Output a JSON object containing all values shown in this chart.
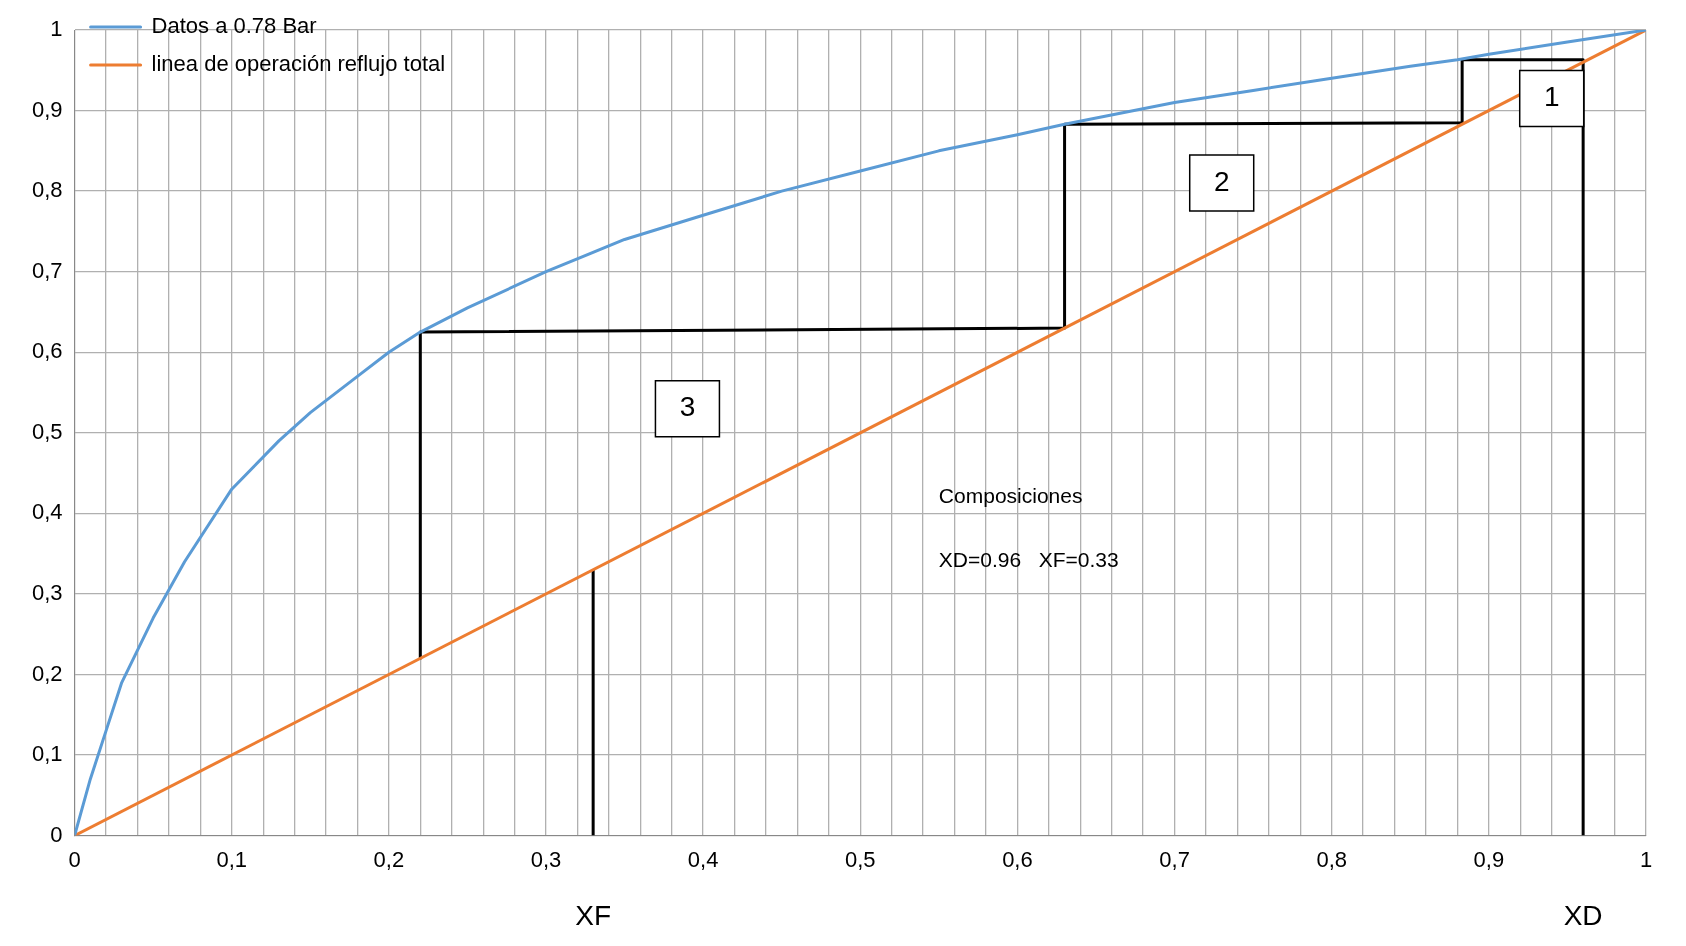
{
  "chart_data": {
    "type": "line",
    "xlim": [
      0,
      1
    ],
    "ylim": [
      0,
      1
    ],
    "xticks": [
      0,
      {
        "value": 0.02,
        "label": null
      },
      {
        "value": 0.04,
        "label": null
      },
      {
        "value": 0.06,
        "label": null
      },
      {
        "value": 0.08,
        "label": null
      },
      {
        "value": 0.1,
        "label": "0,1"
      },
      {
        "value": 0.12,
        "label": null
      },
      {
        "value": 0.14,
        "label": null
      },
      {
        "value": 0.16,
        "label": null
      },
      {
        "value": 0.18,
        "label": null
      },
      {
        "value": 0.2,
        "label": "0,2"
      },
      {
        "value": 0.22,
        "label": null
      },
      {
        "value": 0.24,
        "label": null
      },
      {
        "value": 0.26,
        "label": null
      },
      {
        "value": 0.28,
        "label": null
      },
      {
        "value": 0.3,
        "label": "0,3"
      },
      {
        "value": 0.32,
        "label": null
      },
      {
        "value": 0.34,
        "label": null
      },
      {
        "value": 0.36,
        "label": null
      },
      {
        "value": 0.38,
        "label": null
      },
      {
        "value": 0.4,
        "label": "0,4"
      },
      {
        "value": 0.42,
        "label": null
      },
      {
        "value": 0.44,
        "label": null
      },
      {
        "value": 0.46,
        "label": null
      },
      {
        "value": 0.48,
        "label": null
      },
      {
        "value": 0.5,
        "label": "0,5"
      },
      {
        "value": 0.52,
        "label": null
      },
      {
        "value": 0.54,
        "label": null
      },
      {
        "value": 0.56,
        "label": null
      },
      {
        "value": 0.58,
        "label": null
      },
      {
        "value": 0.6,
        "label": "0,6"
      },
      {
        "value": 0.62,
        "label": null
      },
      {
        "value": 0.64,
        "label": null
      },
      {
        "value": 0.66,
        "label": null
      },
      {
        "value": 0.68,
        "label": null
      },
      {
        "value": 0.7,
        "label": "0,7"
      },
      {
        "value": 0.72,
        "label": null
      },
      {
        "value": 0.74,
        "label": null
      },
      {
        "value": 0.76,
        "label": null
      },
      {
        "value": 0.78,
        "label": null
      },
      {
        "value": 0.8,
        "label": "0,8"
      },
      {
        "value": 0.82,
        "label": null
      },
      {
        "value": 0.84,
        "label": null
      },
      {
        "value": 0.86,
        "label": null
      },
      {
        "value": 0.88,
        "label": null
      },
      {
        "value": 0.9,
        "label": "0,9"
      },
      {
        "value": 0.92,
        "label": null
      },
      {
        "value": 0.94,
        "label": null
      },
      {
        "value": 0.96,
        "label": null
      },
      {
        "value": 0.98,
        "label": null
      },
      1
    ],
    "yticks": [
      0,
      {
        "value": 0.1,
        "label": "0,1"
      },
      {
        "value": 0.2,
        "label": "0,2"
      },
      {
        "value": 0.3,
        "label": "0,3"
      },
      {
        "value": 0.4,
        "label": "0,4"
      },
      {
        "value": 0.5,
        "label": "0,5"
      },
      {
        "value": 0.6,
        "label": "0,6"
      },
      {
        "value": 0.7,
        "label": "0,7"
      },
      {
        "value": 0.8,
        "label": "0,8"
      },
      {
        "value": 0.9,
        "label": "0,9"
      },
      1
    ],
    "grid": true,
    "legend": "top left",
    "marker": "none",
    "line_style": "solid",
    "series": [
      {
        "name": "Datos a 0.78 Bar",
        "color": "#5b9bd5",
        "x": [
          0,
          0.01,
          0.02,
          0.03,
          0.05,
          0.07,
          0.1,
          0.13,
          0.15,
          0.18,
          0.2,
          0.22,
          0.25,
          0.3,
          0.35,
          0.4,
          0.45,
          0.5,
          0.55,
          0.6,
          0.63,
          0.7,
          0.75,
          0.8,
          0.85,
          0.88,
          0.9,
          0.95,
          1
        ],
        "values": [
          0,
          0.07,
          0.13,
          0.19,
          0.27,
          0.34,
          0.43,
          0.49,
          0.525,
          0.57,
          0.6,
          0.625,
          0.655,
          0.7,
          0.74,
          0.77,
          0.8,
          0.825,
          0.85,
          0.87,
          0.883,
          0.91,
          0.925,
          0.94,
          0.955,
          0.963,
          0.97,
          0.985,
          1
        ]
      },
      {
        "name": "linea de operación reflujo total",
        "color": "#ed7d31",
        "x": [
          0,
          1
        ],
        "values": [
          0,
          1
        ]
      },
      {
        "color": "#000000",
        "x": [
          0.96,
          0.96,
          0.883,
          0.883,
          0.63,
          0.63,
          0.22,
          0.22
        ],
        "values": [
          0,
          0.963,
          0.963,
          0.885,
          0.883,
          0.63,
          0.625,
          0.22
        ]
      },
      {
        "color": "#000000",
        "x": [
          0.33,
          0.33
        ],
        "values": [
          0,
          0.33
        ]
      }
    ],
    "annotations": [
      "1",
      "2",
      "3",
      "Composiciones",
      "XD=0.96   XF=0.33",
      {
        "text": "XF",
        "x": 0.33,
        "y": 0
      },
      {
        "text": "XD",
        "x": 0.96,
        "y": 0
      }
    ]
  }
}
